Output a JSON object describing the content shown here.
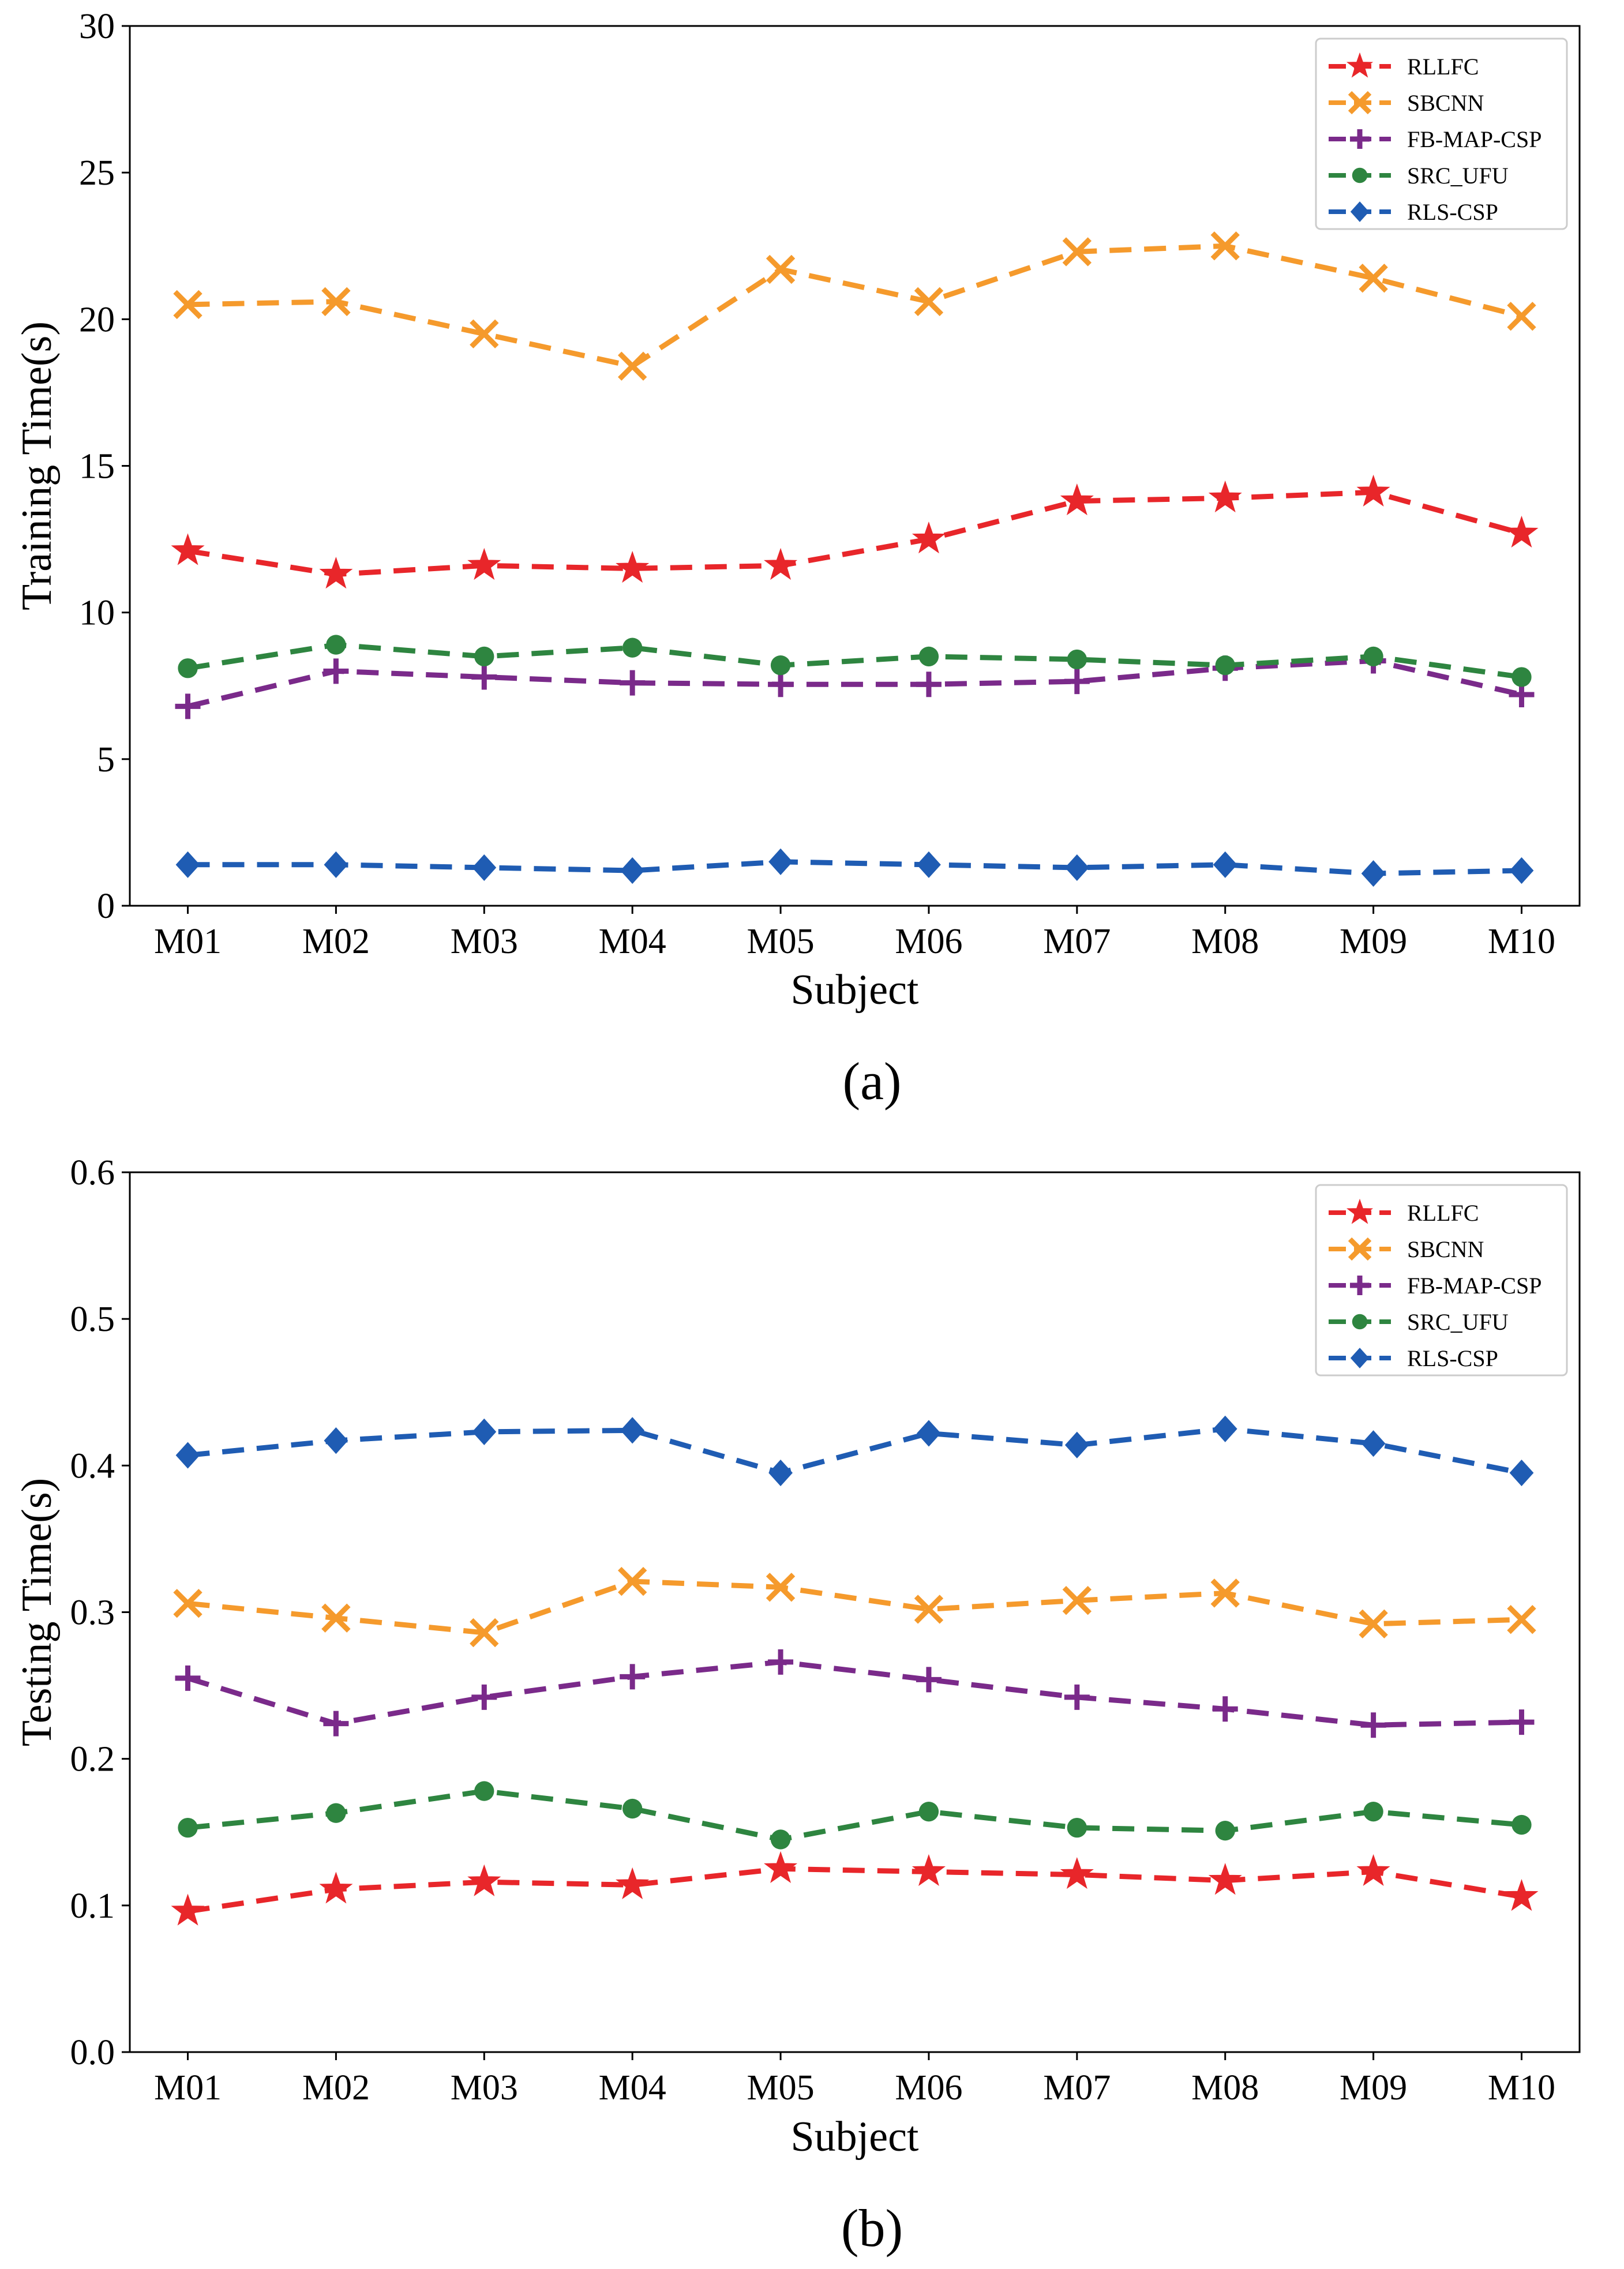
{
  "chart_data": [
    {
      "type": "line",
      "caption": "(a)",
      "xlabel": "Subject",
      "ylabel": "Training Time(s)",
      "categories": [
        "M01",
        "M02",
        "M03",
        "M04",
        "M05",
        "M06",
        "M07",
        "M08",
        "M09",
        "M10"
      ],
      "ylim": [
        0,
        30
      ],
      "yticks": [
        "0",
        "5",
        "10",
        "15",
        "20",
        "25",
        "30"
      ],
      "legend_position": "top-right",
      "series": [
        {
          "name": "RLLFC",
          "color": "#e8262a",
          "marker": "star",
          "values": [
            12.1,
            11.3,
            11.6,
            11.5,
            11.6,
            12.5,
            13.8,
            13.9,
            14.1,
            12.7
          ]
        },
        {
          "name": "SBCNN",
          "color": "#f59a2c",
          "marker": "x",
          "values": [
            20.5,
            20.6,
            19.5,
            18.4,
            21.7,
            20.6,
            22.3,
            22.5,
            21.4,
            20.1
          ]
        },
        {
          "name": "FB-MAP-CSP",
          "color": "#7a2a8a",
          "marker": "plus",
          "values": [
            6.8,
            8.0,
            7.8,
            7.6,
            7.55,
            7.55,
            7.65,
            8.1,
            8.35,
            7.2
          ]
        },
        {
          "name": "SRC_UFU",
          "color": "#2e8540",
          "marker": "circle",
          "values": [
            8.1,
            8.9,
            8.5,
            8.8,
            8.2,
            8.5,
            8.4,
            8.2,
            8.5,
            7.8
          ]
        },
        {
          "name": "RLS-CSP",
          "color": "#1f5cb3",
          "marker": "diamond",
          "values": [
            1.4,
            1.4,
            1.3,
            1.2,
            1.5,
            1.4,
            1.3,
            1.4,
            1.1,
            1.2
          ]
        }
      ]
    },
    {
      "type": "line",
      "caption": "(b)",
      "xlabel": "Subject",
      "ylabel": "Testing Time(s)",
      "categories": [
        "M01",
        "M02",
        "M03",
        "M04",
        "M05",
        "M06",
        "M07",
        "M08",
        "M09",
        "M10"
      ],
      "ylim": [
        0,
        0.6
      ],
      "yticks": [
        "0.0",
        "0.1",
        "0.2",
        "0.3",
        "0.4",
        "0.5",
        "0.6"
      ],
      "legend_position": "top-right",
      "series": [
        {
          "name": "RLLFC",
          "color": "#e8262a",
          "marker": "star",
          "values": [
            0.096,
            0.111,
            0.116,
            0.114,
            0.125,
            0.123,
            0.121,
            0.117,
            0.123,
            0.106
          ]
        },
        {
          "name": "SBCNN",
          "color": "#f59a2c",
          "marker": "x",
          "values": [
            0.306,
            0.296,
            0.286,
            0.321,
            0.317,
            0.302,
            0.308,
            0.313,
            0.292,
            0.295
          ]
        },
        {
          "name": "FB-MAP-CSP",
          "color": "#7a2a8a",
          "marker": "plus",
          "values": [
            0.255,
            0.224,
            0.242,
            0.256,
            0.266,
            0.254,
            0.242,
            0.234,
            0.223,
            0.225
          ]
        },
        {
          "name": "SRC_UFU",
          "color": "#2e8540",
          "marker": "circle",
          "values": [
            0.153,
            0.163,
            0.178,
            0.166,
            0.145,
            0.164,
            0.153,
            0.151,
            0.164,
            0.155
          ]
        },
        {
          "name": "RLS-CSP",
          "color": "#1f5cb3",
          "marker": "diamond",
          "values": [
            0.407,
            0.417,
            0.423,
            0.424,
            0.395,
            0.422,
            0.414,
            0.425,
            0.415,
            0.395
          ]
        }
      ]
    }
  ]
}
